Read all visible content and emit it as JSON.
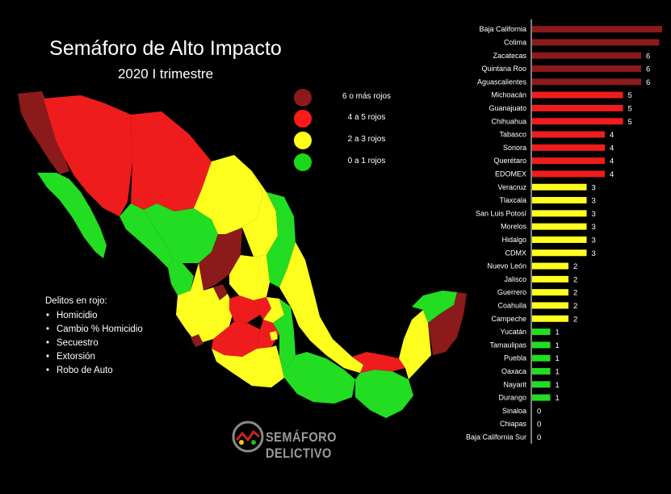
{
  "title": "Semáforo de Alto Impacto",
  "subtitle": "2020 I trimestre",
  "legend": [
    {
      "label": "6 o más rojos",
      "color": "#8b1a1a"
    },
    {
      "label": "4 a 5 rojos",
      "color": "#ff1a1a"
    },
    {
      "label": "2 a 3  rojos",
      "color": "#ffff1a"
    },
    {
      "label": "0 a 1 rojos",
      "color": "#1ad81a"
    }
  ],
  "crimes": {
    "title": "Delitos en rojo:",
    "items": [
      "Homicidio",
      "Cambio % Homicidio",
      "Secuestro",
      "Extorsión",
      "Robo de Auto"
    ]
  },
  "brand": {
    "name": "SEMÁFORO DELICTIVO"
  },
  "colors": {
    "dark_red": "#8b1a1a",
    "red": "#ee1c1c",
    "yellow": "#ffff1f",
    "green": "#22dd22",
    "background": "#000000"
  },
  "chart_data": {
    "type": "bar",
    "orientation": "horizontal",
    "categories": [
      "Baja California",
      "Colima",
      "Zacatecas",
      "Quintana Roo",
      "Aguascalientes",
      "Michoacán",
      "Guanajuato",
      "Chihuahua",
      "Tabasco",
      "Sonora",
      "Querétaro",
      "EDOMEX",
      "Veracruz",
      "Tlaxcala",
      "San Luis Potosí",
      "Morelos",
      "Hidalgo",
      "CDMX",
      "Nuevo León",
      "Jalisco",
      "Guerrero",
      "Coahuila",
      "Campeche",
      "Yucatán",
      "Tamaulipas",
      "Puebla",
      "Oaxaca",
      "Nayarit",
      "Durango",
      "Sinaloa",
      "Chiapas",
      "Baja California Sur"
    ],
    "values": [
      8,
      7,
      6,
      6,
      6,
      5,
      5,
      5,
      4,
      4,
      4,
      4,
      3,
      3,
      3,
      3,
      3,
      3,
      2,
      2,
      2,
      2,
      2,
      1,
      1,
      1,
      1,
      1,
      1,
      0,
      0,
      0
    ],
    "xlim": [
      0,
      8
    ],
    "grid": false
  }
}
